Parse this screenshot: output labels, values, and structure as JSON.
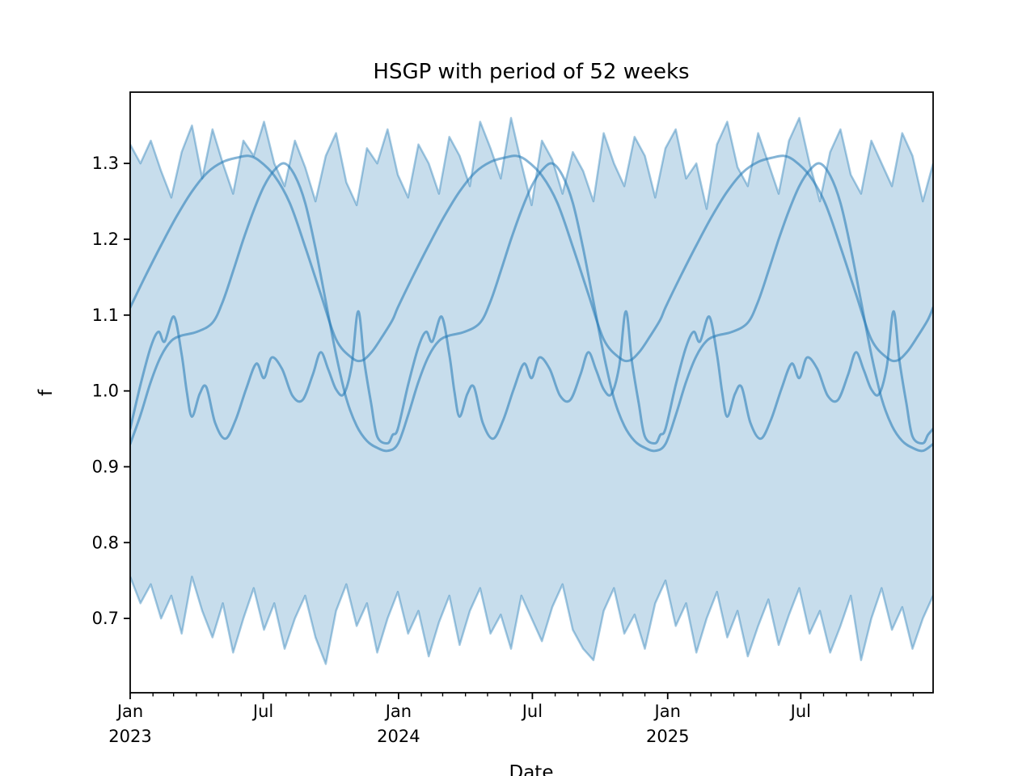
{
  "chart_data": {
    "type": "line",
    "title": "HSGP with period of 52 weeks",
    "xlabel": "Date",
    "ylabel": "f",
    "grid": false,
    "legend": null,
    "ylim": [
      0.602,
      1.394
    ],
    "yticks": [
      0.7,
      0.8,
      0.9,
      1.0,
      1.1,
      1.2,
      1.3
    ],
    "x_start_date": "2023-01-01",
    "x_total_days": 1092,
    "x_end_week": 156,
    "x_major_ticks": [
      {
        "day": 0,
        "label": "Jan",
        "sublabel": "2023"
      },
      {
        "day": 181,
        "label": "Jul"
      },
      {
        "day": 365,
        "label": "Jan",
        "sublabel": "2024"
      },
      {
        "day": 547,
        "label": "Jul"
      },
      {
        "day": 731,
        "label": "Jan",
        "sublabel": "2025"
      },
      {
        "day": 912,
        "label": "Jul"
      }
    ],
    "x_minor_tick_days": [
      31,
      59,
      90,
      120,
      151,
      212,
      243,
      273,
      304,
      334,
      396,
      425,
      456,
      486,
      517,
      578,
      609,
      639,
      670,
      700,
      762,
      790,
      821,
      851,
      882,
      943,
      974,
      1004,
      1035,
      1065
    ],
    "band": {
      "name": "posterior-uncertainty-band",
      "week_step": 2,
      "upper": [
        1.325,
        1.3,
        1.33,
        1.29,
        1.255,
        1.315,
        1.35,
        1.28,
        1.345,
        1.3,
        1.26,
        1.33,
        1.31,
        1.355,
        1.3,
        1.27,
        1.33,
        1.295,
        1.25,
        1.31,
        1.34,
        1.275,
        1.245,
        1.32,
        1.3,
        1.345,
        1.285,
        1.255,
        1.325,
        1.3,
        1.26,
        1.335,
        1.31,
        1.27,
        1.355,
        1.32,
        1.28,
        1.36,
        1.3,
        1.245,
        1.33,
        1.305,
        1.26,
        1.315,
        1.29,
        1.25,
        1.34,
        1.3,
        1.27,
        1.335,
        1.31,
        1.255,
        1.32,
        1.345,
        1.28,
        1.3,
        1.24,
        1.325,
        1.355,
        1.295,
        1.27,
        1.34,
        1.3,
        1.26,
        1.33,
        1.36,
        1.3,
        1.25,
        1.315,
        1.345,
        1.285,
        1.26,
        1.33,
        1.3,
        1.27,
        1.34,
        1.31,
        1.25,
        1.3
      ],
      "lower": [
        0.755,
        0.72,
        0.745,
        0.7,
        0.73,
        0.68,
        0.755,
        0.71,
        0.675,
        0.72,
        0.655,
        0.7,
        0.74,
        0.685,
        0.72,
        0.66,
        0.7,
        0.73,
        0.675,
        0.64,
        0.71,
        0.745,
        0.69,
        0.72,
        0.655,
        0.7,
        0.735,
        0.68,
        0.71,
        0.65,
        0.695,
        0.73,
        0.665,
        0.71,
        0.74,
        0.68,
        0.705,
        0.66,
        0.73,
        0.7,
        0.67,
        0.715,
        0.745,
        0.685,
        0.66,
        0.645,
        0.71,
        0.74,
        0.68,
        0.705,
        0.66,
        0.72,
        0.75,
        0.69,
        0.72,
        0.655,
        0.7,
        0.735,
        0.675,
        0.71,
        0.65,
        0.69,
        0.725,
        0.665,
        0.705,
        0.74,
        0.68,
        0.71,
        0.655,
        0.69,
        0.73,
        0.645,
        0.7,
        0.74,
        0.685,
        0.715,
        0.66,
        0.7,
        0.73
      ]
    },
    "samples": {
      "period_weeks": 52,
      "series": [
        {
          "name": "sample-1",
          "profile": [
            [
              0,
              1.11
            ],
            [
              3,
              1.152
            ],
            [
              6,
              1.192
            ],
            [
              9,
              1.23
            ],
            [
              12,
              1.263
            ],
            [
              15,
              1.288
            ],
            [
              18,
              1.302
            ],
            [
              21,
              1.308
            ],
            [
              23,
              1.31
            ],
            [
              25,
              1.304
            ],
            [
              28,
              1.284
            ],
            [
              31,
              1.248
            ],
            [
              34,
              1.19
            ],
            [
              37,
              1.128
            ],
            [
              40,
              1.068
            ],
            [
              43,
              1.044
            ],
            [
              45,
              1.04
            ],
            [
              47,
              1.052
            ],
            [
              49,
              1.072
            ],
            [
              51,
              1.094
            ]
          ]
        },
        {
          "name": "sample-2",
          "profile": [
            [
              0,
              0.93
            ],
            [
              2,
              0.968
            ],
            [
              4,
              1.012
            ],
            [
              6,
              1.046
            ],
            [
              8,
              1.066
            ],
            [
              10,
              1.073
            ],
            [
              13,
              1.078
            ],
            [
              16,
              1.09
            ],
            [
              18,
              1.118
            ],
            [
              20,
              1.158
            ],
            [
              22,
              1.2
            ],
            [
              24,
              1.238
            ],
            [
              26,
              1.27
            ],
            [
              28,
              1.291
            ],
            [
              30,
              1.3
            ],
            [
              32,
              1.284
            ],
            [
              34,
              1.248
            ],
            [
              36,
              1.188
            ],
            [
              38,
              1.118
            ],
            [
              40,
              1.048
            ],
            [
              42,
              0.99
            ],
            [
              44,
              0.954
            ],
            [
              46,
              0.934
            ],
            [
              48,
              0.925
            ],
            [
              50,
              0.921
            ]
          ]
        },
        {
          "name": "sample-3",
          "profile": [
            [
              0,
              0.95
            ],
            [
              2,
              1.008
            ],
            [
              4,
              1.058
            ],
            [
              5.5,
              1.078
            ],
            [
              6.7,
              1.065
            ],
            [
              8.5,
              1.098
            ],
            [
              10,
              1.048
            ],
            [
              11,
              0.999
            ],
            [
              12,
              0.966
            ],
            [
              13.5,
              0.996
            ],
            [
              14.8,
              1.005
            ],
            [
              16.5,
              0.958
            ],
            [
              18.5,
              0.937
            ],
            [
              20.5,
              0.962
            ],
            [
              22.5,
              1.002
            ],
            [
              24.5,
              1.036
            ],
            [
              26,
              1.017
            ],
            [
              27.5,
              1.044
            ],
            [
              29.5,
              1.029
            ],
            [
              31.5,
              0.994
            ],
            [
              33.5,
              0.988
            ],
            [
              35.5,
              1.022
            ],
            [
              37,
              1.051
            ],
            [
              38.5,
              1.028
            ],
            [
              40,
              1.002
            ],
            [
              41.5,
              0.996
            ],
            [
              43,
              1.032
            ],
            [
              44.3,
              1.105
            ],
            [
              45.5,
              1.038
            ],
            [
              46.8,
              0.984
            ],
            [
              48,
              0.94
            ],
            [
              50,
              0.931
            ],
            [
              51,
              0.942
            ]
          ]
        }
      ]
    },
    "colors": {
      "line": "#1f77b4",
      "line_opacity": 0.55,
      "band_fill_opacity": 0.25,
      "band_edge_opacity": 0.4,
      "frame": "#000000",
      "text": "#000000"
    }
  }
}
